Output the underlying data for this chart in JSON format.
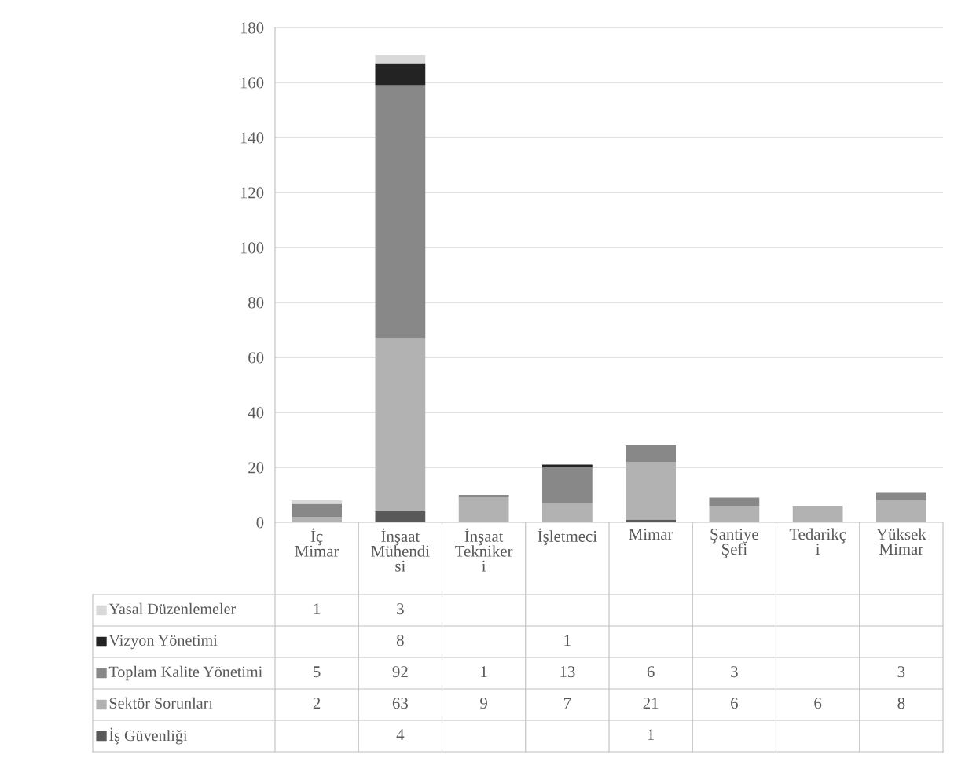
{
  "chart_data": {
    "type": "bar",
    "stacked": true,
    "categories": [
      "İç\nMimar",
      "İnşaat\nMühendi\nsi",
      "İnşaat\nTekniker\ni",
      "İşletmeci",
      "Mimar",
      "Şantiye\nŞefi",
      "Tedarikç\ni",
      "Yüksek\nMimar"
    ],
    "series": [
      {
        "name": "İş Güvenliği",
        "color": "#595959",
        "values": [
          null,
          4,
          null,
          null,
          1,
          null,
          null,
          null
        ]
      },
      {
        "name": "Sektör Sorunları",
        "color": "#b2b2b2",
        "values": [
          2,
          63,
          9,
          7,
          21,
          6,
          6,
          8
        ]
      },
      {
        "name": "Toplam Kalite Yönetimi",
        "color": "#888888",
        "values": [
          5,
          92,
          1,
          13,
          6,
          3,
          null,
          3
        ]
      },
      {
        "name": "Vizyon Yönetimi",
        "color": "#232323",
        "values": [
          null,
          8,
          null,
          1,
          null,
          null,
          null,
          null
        ]
      },
      {
        "name": "Yasal Düzenlemeler",
        "color": "#d9d9d9",
        "values": [
          1,
          3,
          null,
          null,
          null,
          null,
          null,
          null
        ]
      }
    ],
    "ylim": [
      0,
      180
    ],
    "yticks": [
      0,
      20,
      40,
      60,
      80,
      100,
      120,
      140,
      160,
      180
    ],
    "grid": "y",
    "data_labels": true,
    "legend": "bottom"
  }
}
